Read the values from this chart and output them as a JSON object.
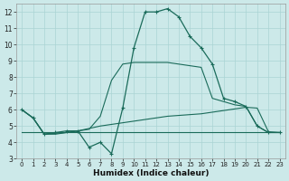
{
  "xlabel": "Humidex (Indice chaleur)",
  "x_ticks": [
    0,
    1,
    2,
    3,
    4,
    5,
    6,
    7,
    8,
    9,
    10,
    11,
    12,
    13,
    14,
    15,
    16,
    17,
    18,
    19,
    20,
    21,
    22,
    23
  ],
  "xlim": [
    -0.5,
    23.5
  ],
  "ylim": [
    3,
    12.5
  ],
  "y_ticks": [
    3,
    4,
    5,
    6,
    7,
    8,
    9,
    10,
    11,
    12
  ],
  "background_color": "#cce9e9",
  "grid_color": "#aad4d4",
  "line_color": "#1a6b5a",
  "series1_y": [
    6.0,
    5.5,
    4.5,
    4.6,
    4.7,
    4.7,
    3.7,
    4.0,
    3.3,
    6.1,
    9.8,
    12.0,
    12.0,
    12.2,
    11.7,
    10.5,
    9.8,
    8.8,
    6.7,
    6.5,
    6.2,
    5.0,
    4.6,
    4.6
  ],
  "series2_y": [
    6.0,
    5.5,
    4.5,
    4.5,
    4.6,
    4.7,
    4.8,
    5.6,
    7.8,
    8.8,
    8.9,
    8.9,
    8.9,
    8.9,
    8.8,
    8.7,
    8.6,
    6.7,
    6.5,
    6.3,
    6.2,
    5.0,
    4.6,
    4.6
  ],
  "series3_y": [
    6.0,
    5.5,
    4.5,
    4.55,
    4.6,
    4.7,
    4.85,
    5.0,
    5.1,
    5.2,
    5.3,
    5.4,
    5.5,
    5.6,
    5.65,
    5.7,
    5.75,
    5.85,
    5.95,
    6.05,
    6.15,
    6.1,
    4.65,
    4.6
  ],
  "series4_y": [
    4.6,
    4.6,
    4.6,
    4.6,
    4.6,
    4.6,
    4.6,
    4.6,
    4.6,
    4.6,
    4.6,
    4.6,
    4.6,
    4.6,
    4.6,
    4.6,
    4.6,
    4.6,
    4.6,
    4.6,
    4.6,
    4.6,
    4.6,
    4.6
  ]
}
